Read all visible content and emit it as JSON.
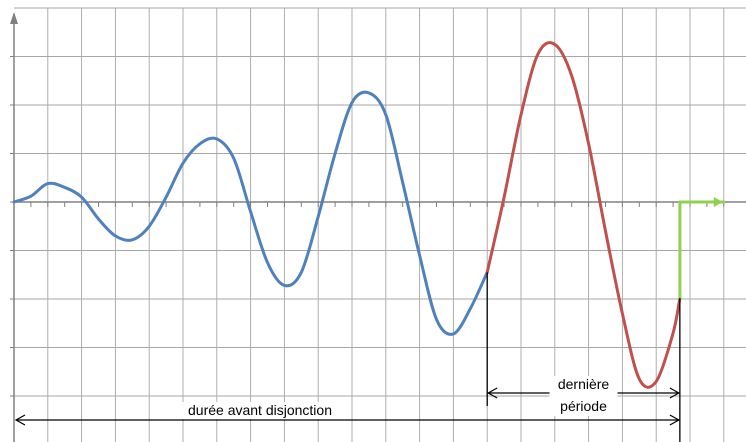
{
  "chart_data": {
    "type": "line",
    "title": "",
    "xlabel": "",
    "ylabel": "",
    "xlim": [
      0,
      21
    ],
    "ylim": [
      -4,
      4
    ],
    "grid": true,
    "colors": {
      "before_trip": "#4f81bd",
      "last_period": "#c0504d",
      "after_trip": "#92d050",
      "grid": "#a6a6a6",
      "axes": "#808080"
    },
    "series": [
      {
        "values": [
          [
            0.0,
            0.0
          ],
          [
            0.5,
            0.12
          ],
          [
            1.0,
            0.38
          ],
          [
            1.5,
            0.3
          ],
          [
            2.0,
            0.1
          ],
          [
            2.5,
            -0.35
          ],
          [
            3.0,
            -0.7
          ],
          [
            3.5,
            -0.78
          ],
          [
            4.0,
            -0.5
          ],
          [
            4.5,
            0.1
          ],
          [
            5.0,
            0.8
          ],
          [
            5.5,
            1.2
          ],
          [
            6.0,
            1.3
          ],
          [
            6.5,
            0.9
          ],
          [
            7.0,
            -0.2
          ],
          [
            7.5,
            -1.25
          ],
          [
            8.0,
            -1.72
          ],
          [
            8.5,
            -1.45
          ],
          [
            9.0,
            -0.3
          ],
          [
            9.5,
            1.0
          ],
          [
            10.0,
            2.05
          ],
          [
            10.5,
            2.25
          ],
          [
            11.0,
            1.8
          ],
          [
            11.5,
            0.4
          ],
          [
            12.0,
            -1.1
          ],
          [
            12.5,
            -2.42
          ],
          [
            13.0,
            -2.72
          ],
          [
            13.5,
            -2.2
          ],
          [
            14.0,
            -1.45
          ]
        ]
      },
      {
        "values": [
          [
            14.0,
            -1.45
          ],
          [
            14.5,
            0.1
          ],
          [
            15.0,
            1.8
          ],
          [
            15.5,
            3.05
          ],
          [
            16.0,
            3.25
          ],
          [
            16.5,
            2.6
          ],
          [
            17.0,
            1.2
          ],
          [
            17.5,
            -0.6
          ],
          [
            18.0,
            -2.3
          ],
          [
            18.5,
            -3.65
          ],
          [
            19.0,
            -3.7
          ],
          [
            19.5,
            -2.7
          ],
          [
            19.7,
            -1.98
          ]
        ]
      },
      {
        "values": [
          [
            19.7,
            -1.98
          ],
          [
            19.7,
            0.0
          ],
          [
            21.0,
            0.0
          ]
        ]
      }
    ],
    "annotations": {
      "last_period": {
        "x_start": 14.0,
        "x_end": 19.7,
        "label_line1": "dernière",
        "label_line2": "période"
      },
      "duration_before_trip": {
        "x_start": 0.0,
        "x_end": 19.7,
        "label": "durée avant disjonction"
      }
    }
  }
}
